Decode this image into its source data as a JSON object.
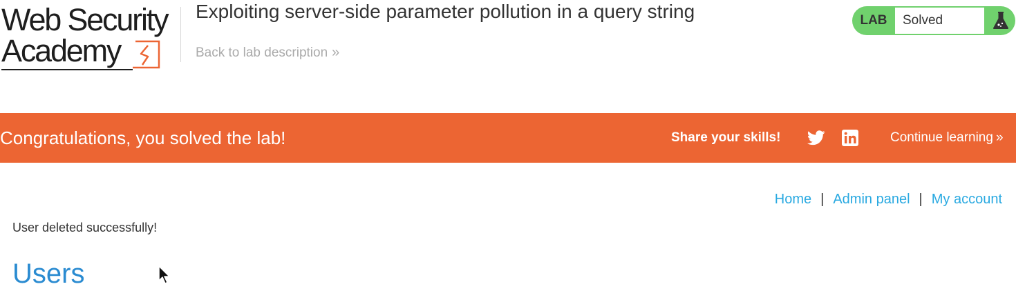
{
  "header": {
    "logo_line1": "Web Security",
    "logo_line2": "Academy",
    "lab_title": "Exploiting server-side parameter pollution in a query string",
    "back_link": "Back to lab description",
    "back_chevron": "»"
  },
  "lab_status": {
    "badge": "LAB",
    "status": "Solved",
    "icon": "flask-icon",
    "badge_color": "#70d16d"
  },
  "banner": {
    "message": "Congratulations, you solved the lab!",
    "share_label": "Share your skills!",
    "share_icons": [
      "twitter-icon",
      "linkedin-icon"
    ],
    "continue_label": "Continue learning",
    "continue_chevron": "»",
    "color": "#ec6533"
  },
  "nav": {
    "items": [
      {
        "label": "Home"
      },
      {
        "label": "Admin panel"
      },
      {
        "label": "My account"
      }
    ],
    "separator": "|"
  },
  "content": {
    "flash_message": "User deleted successfully!",
    "heading": "Users"
  }
}
